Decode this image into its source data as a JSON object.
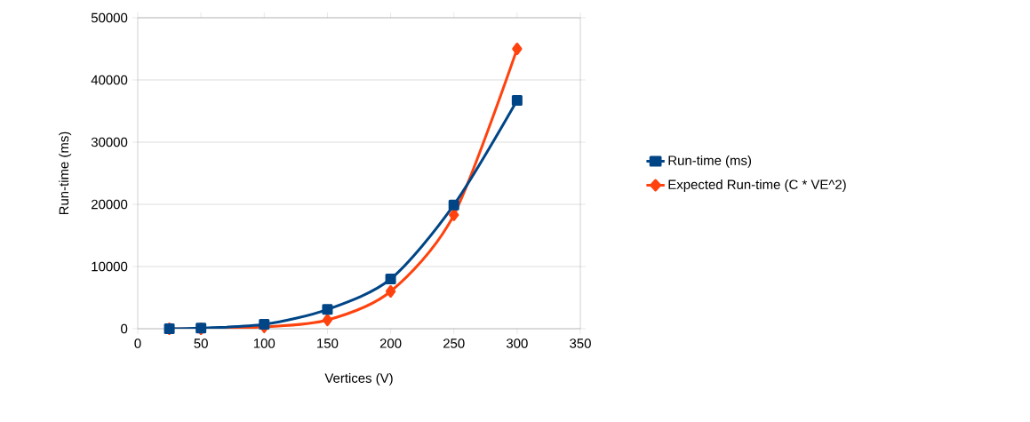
{
  "chart_data": {
    "type": "line",
    "xlabel": "Vertices (V)",
    "ylabel": "Run-time (ms)",
    "x": [
      25,
      50,
      100,
      150,
      200,
      250,
      300
    ],
    "series": [
      {
        "name": "Run-time (ms)",
        "color": "#004586",
        "marker": "square",
        "values": [
          0,
          100,
          700,
          3100,
          8000,
          19900,
          36700
        ]
      },
      {
        "name": "Expected Run-time (C * VE^2)",
        "color": "#ff420e",
        "marker": "diamond",
        "values": [
          0,
          0,
          300,
          1400,
          6000,
          18300,
          45000
        ]
      }
    ],
    "xlim": [
      0,
      350
    ],
    "xticks": [
      0,
      50,
      100,
      150,
      200,
      250,
      300,
      350
    ],
    "ylim": [
      0,
      50000
    ],
    "yticks": [
      0,
      10000,
      20000,
      30000,
      40000,
      50000
    ],
    "grid": "y",
    "legend": "right",
    "line_style": "solid"
  }
}
